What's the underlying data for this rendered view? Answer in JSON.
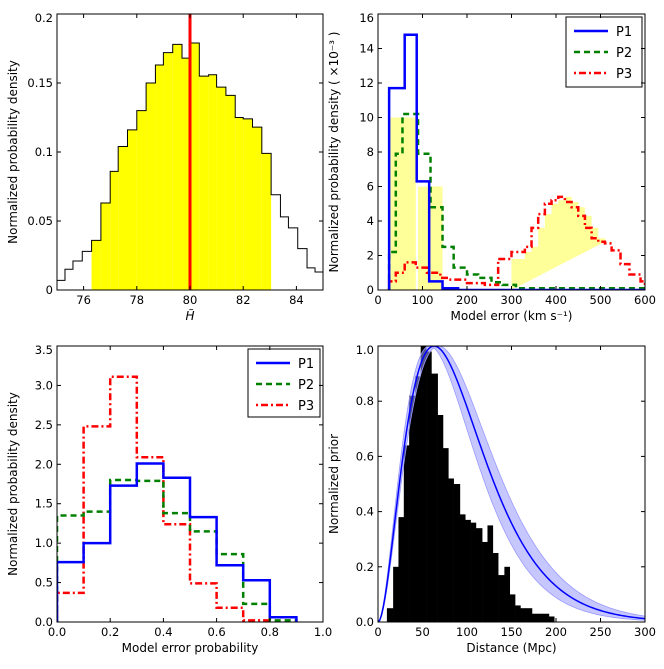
{
  "chart_data": [
    {
      "type": "bar",
      "panel": "top-left",
      "xlabel": "H̃",
      "ylabel": "Normalized probability density",
      "xlim": [
        75,
        85
      ],
      "ylim": [
        0,
        0.2
      ],
      "xticks": [
        {
          "v": 76,
          "t": "76"
        },
        {
          "v": 78,
          "t": "78"
        },
        {
          "v": 80,
          "t": "80"
        },
        {
          "v": 82,
          "t": "82"
        },
        {
          "v": 84,
          "t": "84"
        }
      ],
      "yticks": [
        {
          "v": 0,
          "t": "0"
        },
        {
          "v": 0.05,
          "t": "0.05"
        },
        {
          "v": 0.1,
          "t": "0.1"
        },
        {
          "v": 0.15,
          "t": "0.15"
        },
        {
          "v": 0.2,
          "t": "0.2"
        }
      ],
      "bin_edges": [
        75.0,
        75.3,
        75.6,
        75.95,
        76.3,
        76.65,
        77.0,
        77.3,
        77.65,
        78.0,
        78.35,
        78.7,
        79.0,
        79.35,
        79.7,
        80.0,
        80.35,
        80.7,
        81.0,
        81.35,
        81.7,
        82.0,
        82.35,
        82.7,
        83.05,
        83.4,
        83.7,
        84.05,
        84.4,
        84.7,
        85.0
      ],
      "values": [
        0.007,
        0.015,
        0.021,
        0.028,
        0.036,
        0.063,
        0.086,
        0.104,
        0.116,
        0.13,
        0.15,
        0.163,
        0.172,
        0.178,
        0.168,
        0.179,
        0.155,
        0.156,
        0.147,
        0.141,
        0.125,
        0.124,
        0.118,
        0.099,
        0.069,
        0.053,
        0.045,
        0.03,
        0.016,
        0.013
      ],
      "shaded_range": [
        76.3,
        83.05
      ],
      "vline": 80.0,
      "colors": {
        "fill": "#ffff00",
        "step": "#000000",
        "vline": "#ff0000"
      }
    },
    {
      "type": "bar",
      "panel": "top-right",
      "xlabel": "Model error (km s⁻¹)",
      "ylabel": "Normalized probability density ( ×10⁻³ )",
      "xlim": [
        0,
        600
      ],
      "ylim": [
        0,
        16
      ],
      "xticks": [
        {
          "v": 0,
          "t": "0"
        },
        {
          "v": 100,
          "t": "100"
        },
        {
          "v": 200,
          "t": "200"
        },
        {
          "v": 300,
          "t": "300"
        },
        {
          "v": 400,
          "t": "400"
        },
        {
          "v": 500,
          "t": "500"
        },
        {
          "v": 600,
          "t": "600"
        }
      ],
      "yticks": [
        {
          "v": 0,
          "t": "0"
        },
        {
          "v": 2,
          "t": "2"
        },
        {
          "v": 4,
          "t": "4"
        },
        {
          "v": 6,
          "t": "6"
        },
        {
          "v": 8,
          "t": "8"
        },
        {
          "v": 10,
          "t": "10"
        },
        {
          "v": 12,
          "t": "12"
        },
        {
          "v": 14,
          "t": "14"
        },
        {
          "v": 16,
          "t": "16"
        }
      ],
      "series": [
        {
          "name": "P1",
          "color": "#0000ff",
          "dash": "",
          "width": 2.5,
          "bin_edges": [
            25,
            60,
            87,
            115,
            145,
            180,
            600
          ],
          "values": [
            11.7,
            14.8,
            6.3,
            0.5,
            0.1,
            0.0
          ]
        },
        {
          "name": "P2",
          "color": "#008000",
          "dash": "6,4",
          "width": 2.5,
          "bin_edges": [
            25,
            40,
            55,
            90,
            118,
            145,
            170,
            200,
            225,
            255,
            280,
            310,
            600
          ],
          "values": [
            2.2,
            7.9,
            10.2,
            7.9,
            4.8,
            2.5,
            1.3,
            0.9,
            0.7,
            0.45,
            0.3,
            0.1
          ]
        },
        {
          "name": "P3",
          "color": "#ff0000",
          "dash": "2,3,7,3",
          "width": 2.5,
          "bin_edges": [
            25,
            40,
            60,
            85,
            110,
            140,
            160,
            200,
            240,
            270,
            300,
            330,
            345,
            360,
            375,
            390,
            405,
            420,
            435,
            450,
            465,
            480,
            495,
            510,
            525,
            545,
            565,
            590,
            600
          ],
          "values": [
            0.5,
            1.0,
            1.6,
            1.3,
            1.0,
            0.7,
            0.6,
            0.4,
            0.3,
            1.8,
            2.2,
            2.5,
            3.6,
            4.4,
            5.0,
            5.2,
            5.4,
            5.1,
            4.8,
            4.3,
            3.6,
            3.0,
            2.8,
            2.7,
            2.3,
            1.5,
            0.9,
            0.5
          ]
        }
      ],
      "shaded_regions": [
        {
          "range": [
            25,
            85
          ],
          "height": 10.0
        },
        {
          "range": [
            90,
            145
          ],
          "height": 6.0
        },
        {
          "range": [
            300,
            510
          ],
          "values": [
            1.8,
            2.2,
            2.5,
            3.6,
            4.4,
            5.0,
            5.2,
            5.4,
            5.1,
            4.8,
            4.3,
            3.6,
            3.0,
            2.8
          ],
          "bin_edges": [
            300,
            330,
            345,
            360,
            375,
            390,
            405,
            420,
            435,
            450,
            465,
            480,
            495,
            510
          ]
        }
      ],
      "shade_color": "#ffff99",
      "legend_placement": "top-right",
      "legend": [
        "P1",
        "P2",
        "P3"
      ]
    },
    {
      "type": "bar",
      "panel": "bottom-left",
      "xlabel": "Model error probability",
      "ylabel": "Normalized probability density",
      "xlim": [
        0,
        1
      ],
      "ylim": [
        0,
        3.5
      ],
      "xticks": [
        {
          "v": 0,
          "t": "0.0"
        },
        {
          "v": 0.2,
          "t": "0.2"
        },
        {
          "v": 0.4,
          "t": "0.4"
        },
        {
          "v": 0.6,
          "t": "0.6"
        },
        {
          "v": 0.8,
          "t": "0.8"
        },
        {
          "v": 1.0,
          "t": "1.0"
        }
      ],
      "yticks": [
        {
          "v": 0,
          "t": "0.0"
        },
        {
          "v": 0.5,
          "t": "0.5"
        },
        {
          "v": 1.0,
          "t": "1.0"
        },
        {
          "v": 1.5,
          "t": "1.5"
        },
        {
          "v": 2.0,
          "t": "2.0"
        },
        {
          "v": 2.5,
          "t": "2.5"
        },
        {
          "v": 3.0,
          "t": "3.0"
        },
        {
          "v": 3.5,
          "t": "3.5"
        }
      ],
      "series": [
        {
          "name": "P1",
          "color": "#0000ff",
          "dash": "",
          "width": 2.5,
          "bin_edges": [
            0.0,
            0.1,
            0.2,
            0.3,
            0.4,
            0.5,
            0.6,
            0.7,
            0.8,
            0.9
          ],
          "values": [
            0.76,
            1.0,
            1.73,
            2.01,
            1.83,
            1.33,
            0.72,
            0.53,
            0.06
          ]
        },
        {
          "name": "P2",
          "color": "#008000",
          "dash": "6,4",
          "width": 2.5,
          "bin_edges": [
            0.0,
            0.1,
            0.2,
            0.3,
            0.4,
            0.5,
            0.6,
            0.7,
            0.8,
            0.9
          ],
          "values": [
            1.35,
            1.4,
            1.8,
            1.79,
            1.38,
            1.15,
            0.86,
            0.23,
            0.02
          ]
        },
        {
          "name": "P3",
          "color": "#ff0000",
          "dash": "2,3,7,3",
          "width": 2.5,
          "bin_edges": [
            0.0,
            0.1,
            0.2,
            0.3,
            0.4,
            0.5,
            0.6,
            0.7,
            0.8
          ],
          "values": [
            0.37,
            2.48,
            3.11,
            2.09,
            1.24,
            0.49,
            0.18,
            0.02
          ]
        }
      ],
      "legend_placement": "top-right",
      "legend": [
        "P1",
        "P2",
        "P3"
      ]
    },
    {
      "type": "bar",
      "panel": "bottom-right",
      "xlabel": "Distance (Mpc)",
      "ylabel": "Normalized prior",
      "xlim": [
        0,
        300
      ],
      "ylim": [
        0,
        1.0
      ],
      "xticks": [
        {
          "v": 0,
          "t": "0"
        },
        {
          "v": 50,
          "t": "50"
        },
        {
          "v": 100,
          "t": "100"
        },
        {
          "v": 150,
          "t": "150"
        },
        {
          "v": 200,
          "t": "200"
        },
        {
          "v": 250,
          "t": "250"
        },
        {
          "v": 300,
          "t": "300"
        }
      ],
      "yticks": [
        {
          "v": 0,
          "t": "0.0"
        },
        {
          "v": 0.2,
          "t": "0.2"
        },
        {
          "v": 0.4,
          "t": "0.4"
        },
        {
          "v": 0.6,
          "t": "0.6"
        },
        {
          "v": 0.8,
          "t": "0.8"
        },
        {
          "v": 1.0,
          "t": "1.0"
        }
      ],
      "bin_edges": [
        10,
        17,
        23,
        29,
        35,
        42,
        48,
        54,
        60,
        67,
        73,
        79,
        85,
        92,
        98,
        104,
        110,
        117,
        123,
        129,
        135,
        142,
        148,
        154,
        160,
        167,
        173,
        179,
        185,
        192,
        198
      ],
      "values": [
        0.05,
        0.2,
        0.38,
        0.64,
        0.82,
        0.89,
        1.0,
        0.98,
        0.9,
        0.75,
        0.63,
        0.52,
        0.5,
        0.39,
        0.37,
        0.36,
        0.34,
        0.29,
        0.35,
        0.25,
        0.17,
        0.2,
        0.1,
        0.06,
        0.05,
        0.05,
        0.03,
        0.03,
        0.03,
        0.02
      ],
      "curve_peak_x": 63,
      "curve_color": "#0000ff",
      "band_color": "#9999ff",
      "bar_color": "#000000"
    }
  ]
}
